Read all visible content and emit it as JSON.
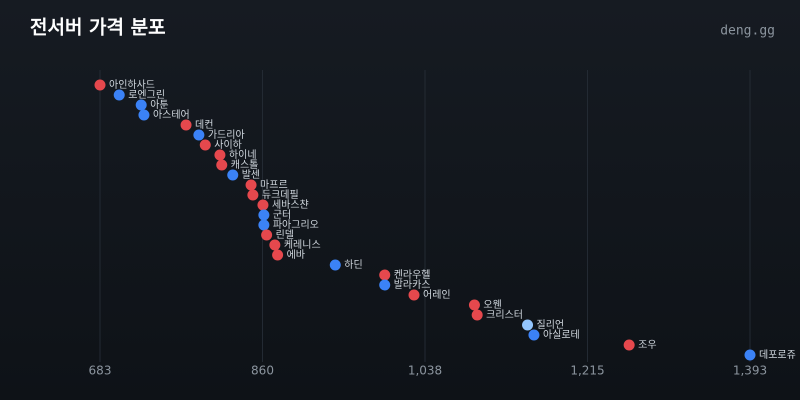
{
  "chart_data": {
    "type": "dot",
    "title": "전서버 가격 분포",
    "brand": "deng.gg",
    "points": [
      {
        "name": "아인하사드",
        "value": 683,
        "color": "#e5484d"
      },
      {
        "name": "로엔그린",
        "value": 704,
        "color": "#3b82f6"
      },
      {
        "name": "아툰",
        "value": 728,
        "color": "#3b82f6"
      },
      {
        "name": "아스테어",
        "value": 731,
        "color": "#3b82f6"
      },
      {
        "name": "데컨",
        "value": 777,
        "color": "#e5484d"
      },
      {
        "name": "가드리아",
        "value": 791,
        "color": "#3b82f6"
      },
      {
        "name": "사이하",
        "value": 798,
        "color": "#e5484d"
      },
      {
        "name": "하이네",
        "value": 814,
        "color": "#e5484d"
      },
      {
        "name": "캐스톨",
        "value": 816,
        "color": "#e5484d"
      },
      {
        "name": "발센",
        "value": 828,
        "color": "#3b82f6"
      },
      {
        "name": "마프르",
        "value": 848,
        "color": "#e5484d"
      },
      {
        "name": "듀크데필",
        "value": 850,
        "color": "#e5484d"
      },
      {
        "name": "세바스챤",
        "value": 861,
        "color": "#e5484d"
      },
      {
        "name": "군터",
        "value": 862,
        "color": "#3b82f6"
      },
      {
        "name": "파아그리오",
        "value": 862,
        "color": "#3b82f6"
      },
      {
        "name": "린델",
        "value": 865,
        "color": "#e5484d"
      },
      {
        "name": "케레니스",
        "value": 874,
        "color": "#e5484d"
      },
      {
        "name": "에바",
        "value": 877,
        "color": "#e5484d"
      },
      {
        "name": "하딘",
        "value": 940,
        "color": "#3b82f6"
      },
      {
        "name": "켄라우헬",
        "value": 994,
        "color": "#e5484d"
      },
      {
        "name": "발라카스",
        "value": 994,
        "color": "#3b82f6"
      },
      {
        "name": "어레인",
        "value": 1026,
        "color": "#e5484d"
      },
      {
        "name": "오웬",
        "value": 1092,
        "color": "#e5484d"
      },
      {
        "name": "크리스터",
        "value": 1095,
        "color": "#e5484d"
      },
      {
        "name": "질리언",
        "value": 1150,
        "color": "#93c5fd"
      },
      {
        "name": "아실로테",
        "value": 1157,
        "color": "#3b82f6"
      },
      {
        "name": "조우",
        "value": 1261,
        "color": "#e5484d"
      },
      {
        "name": "데포로쥬",
        "value": 1393,
        "color": "#3b82f6"
      }
    ],
    "xlim": [
      683,
      1393
    ],
    "xticks": [
      683,
      {
        "value": 860.5,
        "label": "860"
      },
      {
        "value": 1038,
        "label": "1,038"
      },
      {
        "value": 1215.5,
        "label": "1,215"
      },
      {
        "value": 1393,
        "label": "1,393"
      }
    ],
    "grid": true
  }
}
